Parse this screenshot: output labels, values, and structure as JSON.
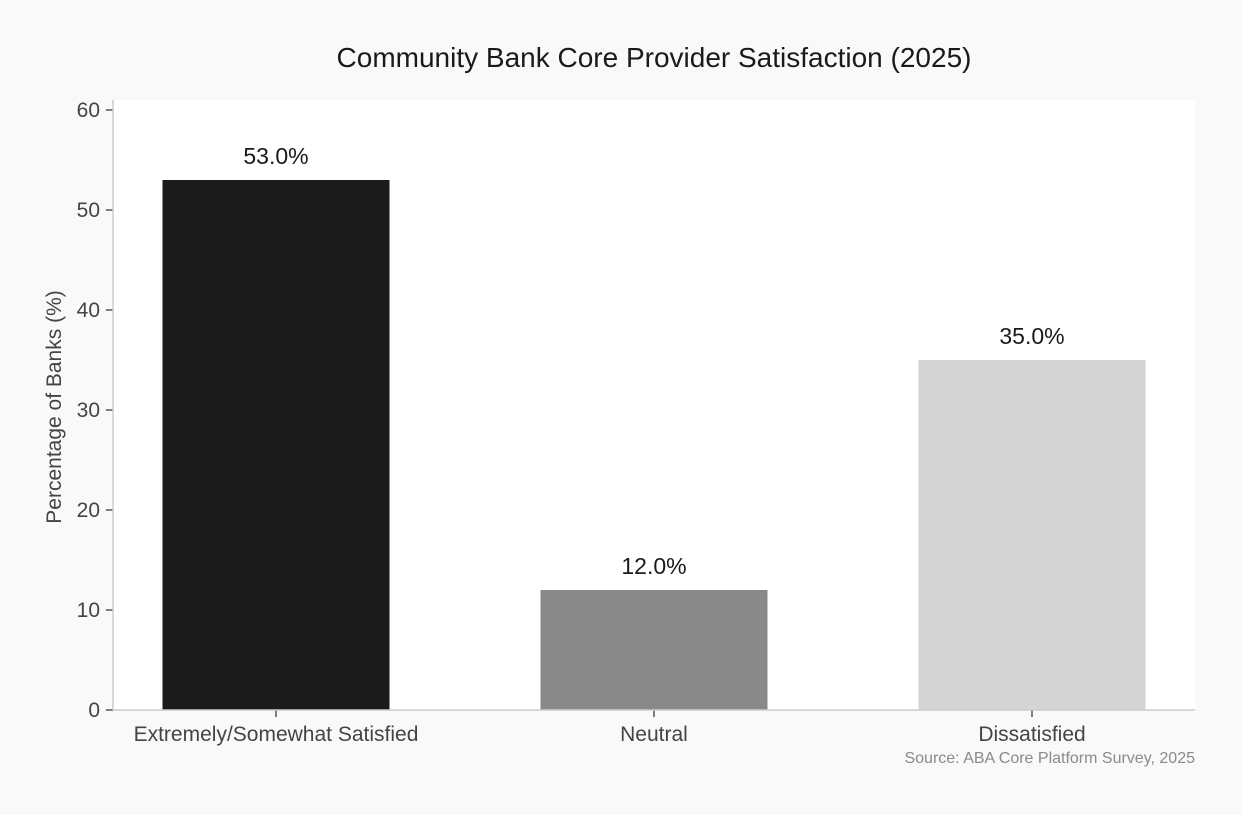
{
  "chart_data": {
    "type": "bar",
    "title": "Community Bank Core Provider Satisfaction (2025)",
    "xlabel": "",
    "ylabel": "Percentage of Banks (%)",
    "categories": [
      "Extremely/Somewhat Satisfied",
      "Neutral",
      "Dissatisfied"
    ],
    "values": [
      53.0,
      12.0,
      35.0
    ],
    "value_labels": [
      "53.0%",
      "12.0%",
      "35.0%"
    ],
    "colors": [
      "#1b1b1b",
      "#898989",
      "#d4d4d4"
    ],
    "ylim": [
      0,
      60
    ],
    "yticks": [
      0,
      10,
      20,
      30,
      40,
      50,
      60
    ],
    "grid": false,
    "legend": "none",
    "source_note": "Source: ABA Core Platform Survey, 2025"
  }
}
